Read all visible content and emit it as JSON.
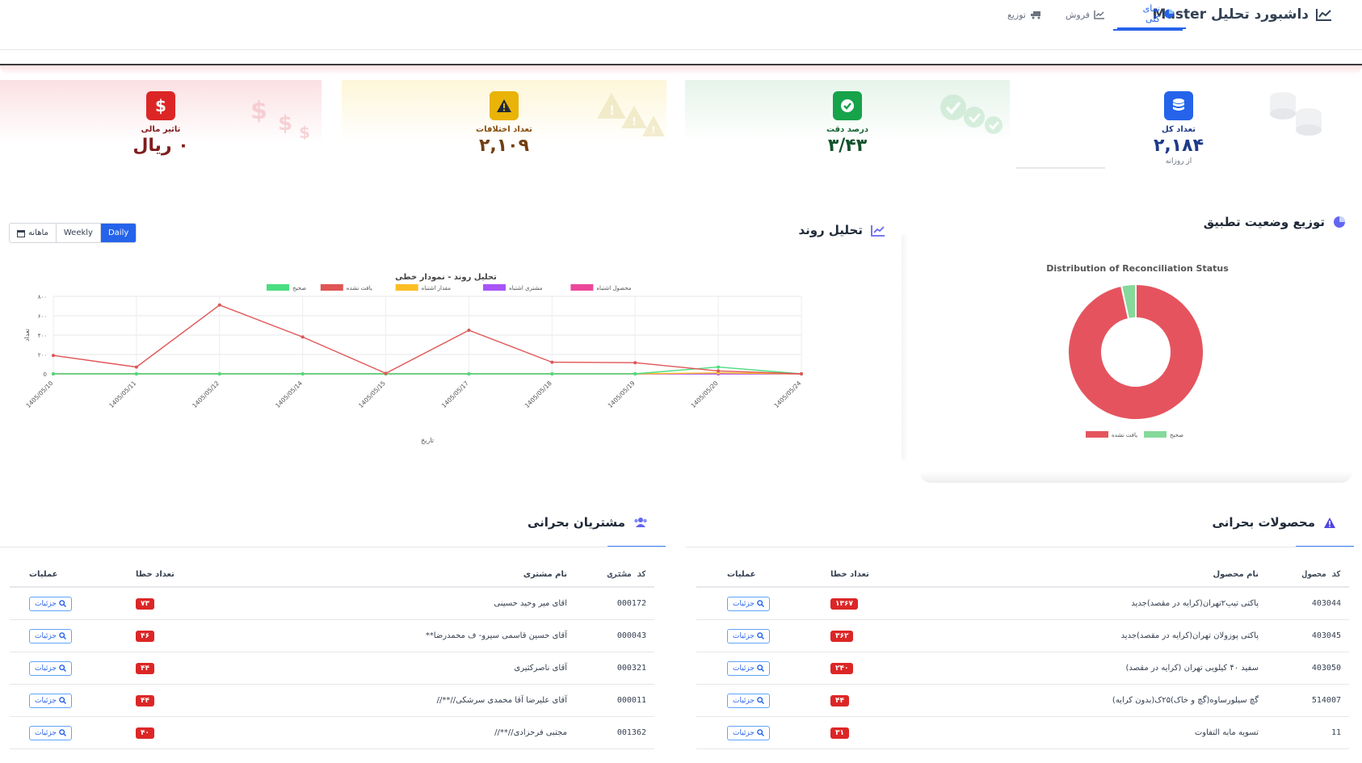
{
  "header": {
    "title": "داشبورد تحلیل Master",
    "tabs": [
      {
        "label": "نمای کلی",
        "icon": "pie-chart-icon",
        "active": true
      },
      {
        "label": "فروش",
        "icon": "line-chart-icon",
        "active": false
      },
      {
        "label": "توزیع",
        "icon": "truck-icon",
        "active": false
      }
    ]
  },
  "kpis": {
    "total": {
      "label": "تعداد کل",
      "value": "۲,۱۸۴",
      "sub": "از روزانه",
      "icon": "database-icon",
      "color": "#2563eb"
    },
    "accuracy": {
      "label": "درصد دقت",
      "value": "۳/۴۳",
      "icon": "check-circle-icon",
      "color": "#16a34a"
    },
    "discrepancy": {
      "label": "تعداد اختلافات",
      "value": "۲,۱۰۹",
      "icon": "warning-icon",
      "color": "#eab308"
    },
    "financial": {
      "label": "تاثیر مالی",
      "value": "۰ ریال",
      "icon": "dollar-icon",
      "color": "#dc2626"
    }
  },
  "trend": {
    "title": "تحلیل روند",
    "periods": {
      "monthly": "ماهانه",
      "weekly": "Weekly",
      "daily": "Daily"
    }
  },
  "status": {
    "title": "توزیع وضعیت تطبیق"
  },
  "chart_data": [
    {
      "type": "line",
      "title": "تحلیل روند - نمودار خطی",
      "xlabel": "تاریخ",
      "ylabel": "تعداد",
      "x": [
        "1405/05/10",
        "1405/05/11",
        "1405/05/12",
        "1405/05/14",
        "1405/05/15",
        "1405/05/17",
        "1405/05/18",
        "1405/05/19",
        "1405/05/20",
        "1405/05/24"
      ],
      "ylim": [
        0,
        800
      ],
      "yticks": [
        "0",
        "۲۰۰",
        "۴۰۰",
        "۶۰۰",
        "۸۰۰"
      ],
      "grid": true,
      "legend_position": "top",
      "series": [
        {
          "name": "صحیح",
          "color": "#4ade80",
          "values": [
            0,
            0,
            0,
            0,
            0,
            0,
            0,
            0,
            70,
            0
          ]
        },
        {
          "name": "یافت نشده",
          "color": "#e05555",
          "values": [
            190,
            70,
            710,
            380,
            5,
            450,
            120,
            115,
            30,
            0
          ]
        },
        {
          "name": "مقدار اشتباه",
          "color": "#fbbf24",
          "values": [
            0,
            0,
            0,
            0,
            0,
            0,
            0,
            0,
            10,
            0
          ]
        },
        {
          "name": "مشتری اشتباه",
          "color": "#a855f7",
          "values": [
            0,
            0,
            0,
            0,
            0,
            0,
            0,
            0,
            0,
            0
          ]
        },
        {
          "name": "محصول اشتباه",
          "color": "#ec4899",
          "values": [
            0,
            0,
            0,
            0,
            0,
            0,
            0,
            0,
            0,
            0
          ]
        }
      ]
    },
    {
      "type": "pie",
      "title": "Distribution of Reconciliation Status",
      "legend_position": "bottom",
      "labels": [
        "یافت نشده",
        "صحیح"
      ],
      "values": [
        2109,
        75
      ],
      "colors": [
        "#e5545e",
        "#86d99a"
      ]
    }
  ],
  "critical_products": {
    "title": "محصولات بحرانی",
    "columns": {
      "code": "کد محصول",
      "name": "نام محصول",
      "errors": "تعداد خطا",
      "actions": "عملیات"
    },
    "rows": [
      {
        "code": "403044",
        "name": "پاکتی تیپ۲تهران(کرایه در مقصد)جدید",
        "errors": "۱۳۶۷",
        "action": "جزئیات"
      },
      {
        "code": "403045",
        "name": "پاکتی پوزولان تهران(کرایه در مقصد)جدید",
        "errors": "۳۶۲",
        "action": "جزئیات"
      },
      {
        "code": "403050",
        "name": "سفید ۴۰ کیلویی تهران (کرایه در مقصد)",
        "errors": "۲۴۰",
        "action": "جزئیات"
      },
      {
        "code": "514007",
        "name": "گچ سیلورساوه(گچ و خاک)۲۵ک(بدون کرایه)",
        "errors": "۴۴",
        "action": "جزئیات"
      },
      {
        "code": "11",
        "name": "تسویه مابه التفاوت",
        "errors": "۳۱",
        "action": "جزئیات"
      }
    ]
  },
  "critical_customers": {
    "title": "مشتریان بحرانی",
    "columns": {
      "code": "کد مشتری",
      "name": "نام مشتری",
      "errors": "تعداد خطا",
      "actions": "عملیات"
    },
    "rows": [
      {
        "code": "000172",
        "name": "اقای میر وحید حسینی",
        "errors": "۷۳",
        "action": "جزئیات"
      },
      {
        "code": "000043",
        "name": "آقای حسین قاسمی سیرو- ف محمدرضا**",
        "errors": "۴۶",
        "action": "جزئیات"
      },
      {
        "code": "000321",
        "name": "آقای ناصرکثیری",
        "errors": "۴۴",
        "action": "جزئیات"
      },
      {
        "code": "000011",
        "name": "آقای علیرضا آقا محمدی سرشکی//**//",
        "errors": "۴۴",
        "action": "جزئیات"
      },
      {
        "code": "001362",
        "name": "مجتبی فرحزادی//**//",
        "errors": "۴۰",
        "action": "جزئیات"
      }
    ]
  }
}
